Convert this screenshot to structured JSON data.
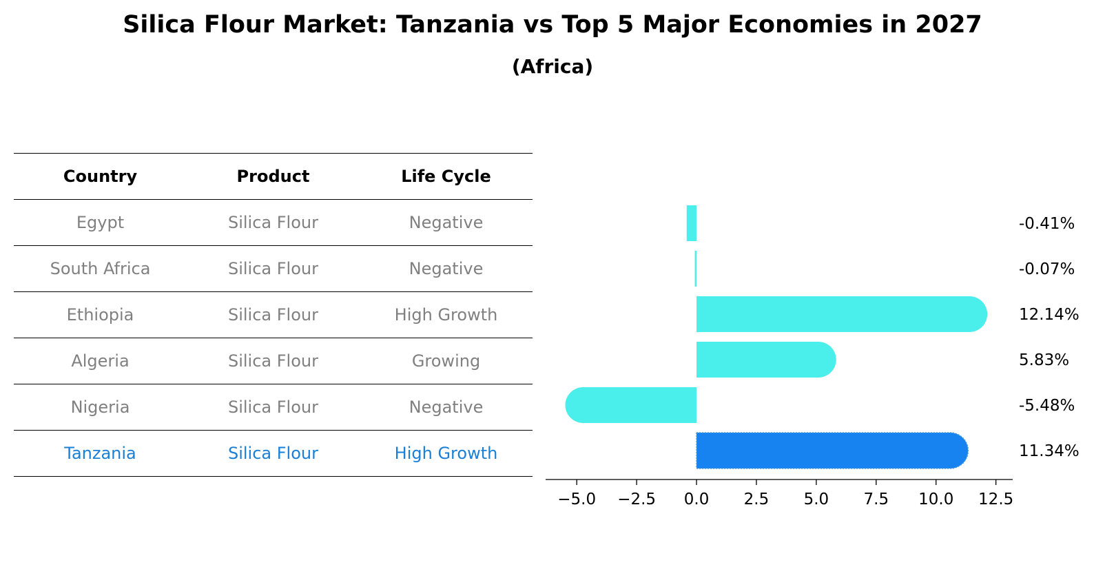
{
  "title": "Silica Flour Market: Tanzania vs Top 5 Major Economies in 2027",
  "subtitle": "(Africa)",
  "table": {
    "headers": [
      "Country",
      "Product",
      "Life Cycle"
    ],
    "rows": [
      {
        "country": "Egypt",
        "product": "Silica Flour",
        "life_cycle": "Negative"
      },
      {
        "country": "South Africa",
        "product": "Silica Flour",
        "life_cycle": "Negative"
      },
      {
        "country": "Ethiopia",
        "product": "Silica Flour",
        "life_cycle": "High Growth"
      },
      {
        "country": "Algeria",
        "product": "Silica Flour",
        "life_cycle": "Growing"
      },
      {
        "country": "Nigeria",
        "product": "Silica Flour",
        "life_cycle": "Negative"
      },
      {
        "country": "Tanzania",
        "product": "Silica Flour",
        "life_cycle": "High Growth"
      }
    ]
  },
  "chart_data": {
    "type": "bar",
    "orientation": "horizontal",
    "title": "Silica Flour Market: Tanzania vs Top 5 Major Economies in 2027",
    "subtitle": "(Africa)",
    "categories": [
      "Egypt",
      "South Africa",
      "Ethiopia",
      "Algeria",
      "Nigeria",
      "Tanzania"
    ],
    "values": [
      -0.41,
      -0.07,
      12.14,
      5.83,
      -5.48,
      11.34
    ],
    "value_labels": [
      "-0.41%",
      "-0.07%",
      "12.14%",
      "5.83%",
      "-5.48%",
      "11.34%"
    ],
    "highlight": "Tanzania",
    "xlim": [
      -6.3,
      13.2
    ],
    "xticks": [
      -5.0,
      -2.5,
      0.0,
      2.5,
      5.0,
      7.5,
      10.0,
      12.5
    ],
    "xtick_labels": [
      "−5.0",
      "−2.5",
      "0.0",
      "2.5",
      "5.0",
      "7.5",
      "10.0",
      "12.5"
    ],
    "xlabel": "",
    "ylabel": "",
    "grid": false,
    "colors": {
      "bar": "#4aeeeb",
      "highlight_bar": "#1783f1",
      "highlight_text": "#1a7fd6",
      "muted_text": "#808080"
    }
  }
}
